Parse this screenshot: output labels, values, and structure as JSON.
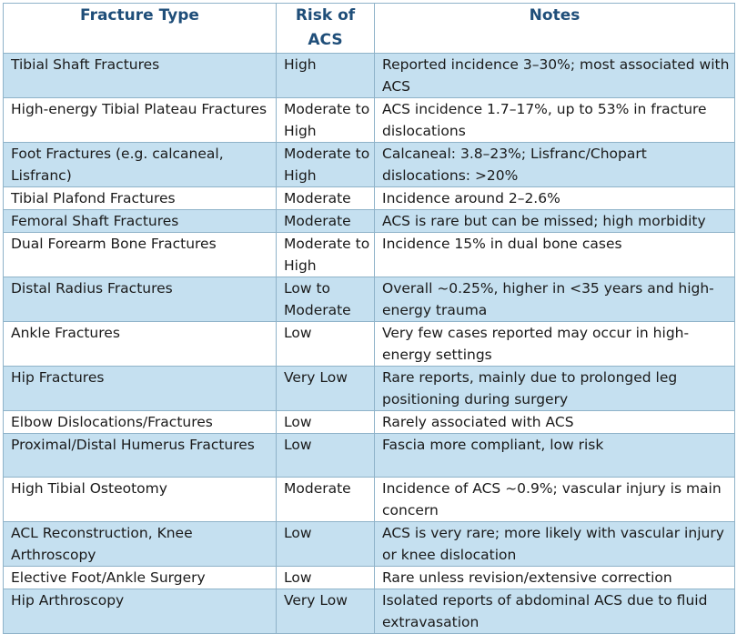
{
  "table": {
    "headers": [
      "Fracture Type",
      "Risk of ACS",
      "Notes"
    ],
    "rows": [
      [
        "Tibial Shaft Fractures",
        "High",
        "Reported incidence 3–30%; most associated with ACS"
      ],
      [
        "High-energy Tibial Plateau Fractures",
        "Moderate to High",
        "ACS incidence 1.7–17%, up to 53% in fracture dislocations"
      ],
      [
        "Foot Fractures (e.g. calcaneal, Lisfranc)",
        "Moderate to High",
        "Calcaneal: 3.8–23%; Lisfranc/Chopart dislocations: >20%"
      ],
      [
        "Tibial Plafond Fractures",
        "Moderate",
        "Incidence around 2–2.6%"
      ],
      [
        "Femoral Shaft Fractures",
        "Moderate",
        "ACS is rare but can be missed; high morbidity"
      ],
      [
        "Dual Forearm Bone Fractures",
        "Moderate to High",
        "Incidence 15% in dual bone cases"
      ],
      [
        "Distal Radius Fractures",
        "Low to Moderate",
        "Overall ~0.25%, higher in <35 years and high-energy trauma"
      ],
      [
        "Ankle Fractures",
        "Low",
        "Very few cases reported may occur in high-energy settings"
      ],
      [
        "Hip Fractures",
        "Very Low",
        "Rare reports, mainly due to prolonged leg positioning during surgery"
      ],
      [
        "Elbow Dislocations/Fractures",
        "Low",
        "Rarely associated with ACS"
      ],
      [
        "Proximal/Distal Humerus Fractures",
        "Low",
        "Fascia more compliant, low risk"
      ],
      [
        "High Tibial Osteotomy",
        "Moderate",
        "Incidence of ACS ~0.9%; vascular injury is main concern"
      ],
      [
        "ACL Reconstruction, Knee Arthroscopy",
        "Low",
        "ACS is very rare; more likely with vascular injury or knee dislocation"
      ],
      [
        "Elective Foot/Ankle Surgery",
        "Low",
        "Rare unless revision/extensive correction"
      ],
      [
        "Hip Arthroscopy",
        "Very Low",
        "Isolated reports of abdominal ACS due to fluid extravasation"
      ]
    ]
  }
}
